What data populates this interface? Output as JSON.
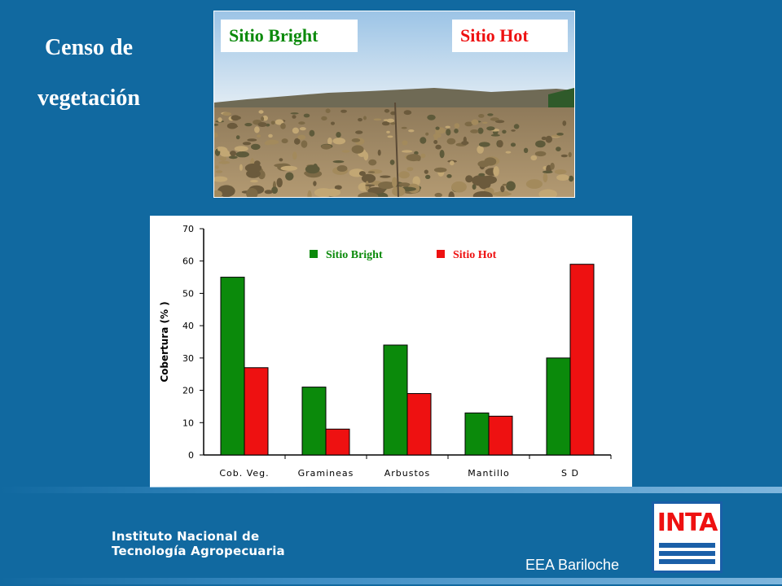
{
  "slide": {
    "title_line1": "Censo de",
    "title_line2": "vegetación"
  },
  "photo": {
    "label_bright": "Sitio Bright",
    "label_hot": "Sitio Hot"
  },
  "footer": {
    "institute_line1": "Instituto Nacional de",
    "institute_line2": "Tecnología Agropecuaria",
    "station": "EEA Bariloche",
    "logo_text": "INTA"
  },
  "colors": {
    "background": "#1169a0",
    "bright": "#0b8a0b",
    "hot": "#ee1111",
    "logo_blue": "#1a5fa8"
  },
  "chart_data": {
    "type": "bar",
    "title": "",
    "xlabel": "",
    "ylabel": "Cobertura (% )",
    "ylim": [
      0,
      70
    ],
    "yticks": [
      0,
      10,
      20,
      30,
      40,
      50,
      60,
      70
    ],
    "grid": false,
    "legend": "top-center",
    "categories": [
      "Cob. Veg.",
      "Gramineas",
      "Arbustos",
      "Mantillo",
      "S D"
    ],
    "series": [
      {
        "name": "Sitio Bright",
        "color": "#0b8a0b",
        "values": [
          55,
          21,
          34,
          13,
          30
        ]
      },
      {
        "name": "Sitio Hot",
        "color": "#ee1111",
        "values": [
          27,
          8,
          19,
          12,
          59
        ]
      }
    ]
  }
}
